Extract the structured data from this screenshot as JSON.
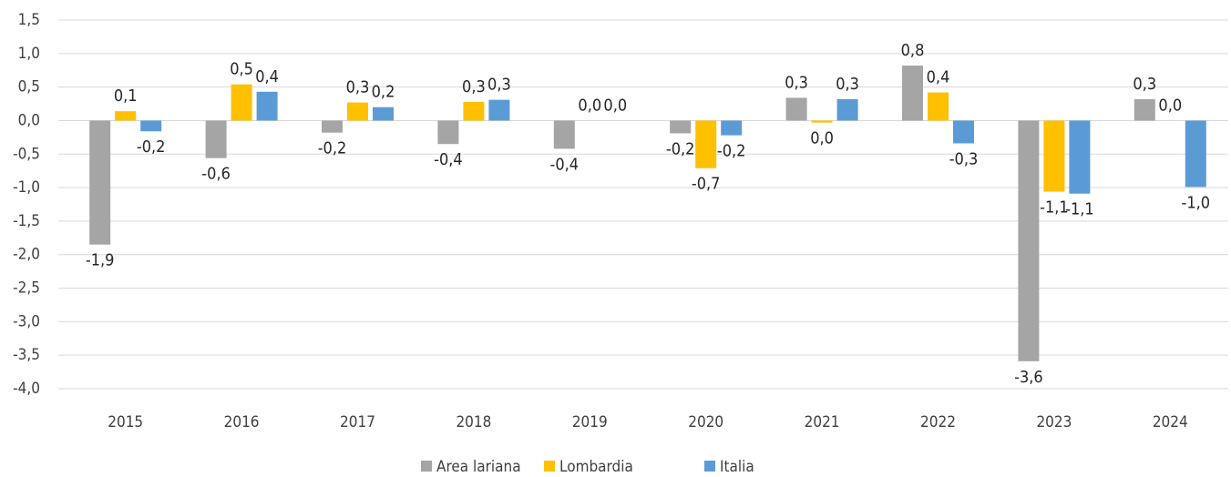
{
  "chart_data": {
    "type": "bar",
    "categories": [
      "2015",
      "2016",
      "2017",
      "2018",
      "2019",
      "2020",
      "2021",
      "2022",
      "2023",
      "2024"
    ],
    "series": [
      {
        "name": "Area lariana",
        "color": "#a5a5a5",
        "values": [
          -1.85,
          -0.56,
          -0.18,
          -0.35,
          -0.42,
          -0.19,
          0.34,
          0.82,
          -3.59,
          0.32
        ],
        "value_labels": [
          "-1,9",
          "-0,6",
          "-0,2",
          "-0,4",
          "-0,4",
          "-0,2",
          "0,3",
          "0,8",
          "-3,6",
          "0,3"
        ]
      },
      {
        "name": "Lombardia",
        "color": "#ffc000",
        "values": [
          0.14,
          0.54,
          0.27,
          0.28,
          0.0,
          -0.71,
          -0.03,
          0.42,
          -1.06,
          0.0
        ],
        "value_labels": [
          "0,1",
          "0,5",
          "0,3",
          "0,3",
          "0,0",
          "-0,7",
          "0,0",
          "0,4",
          "-1,1",
          "0,0"
        ]
      },
      {
        "name": "Italia",
        "color": "#5b9bd5",
        "values": [
          -0.16,
          0.43,
          0.2,
          0.31,
          0.0,
          -0.22,
          0.32,
          -0.34,
          -1.09,
          -0.99
        ],
        "value_labels": [
          "-0,2",
          "0,4",
          "0,2",
          "0,3",
          "0,0",
          "-0,2",
          "0,3",
          "-0,3",
          "-1,1",
          "-1,0"
        ]
      }
    ],
    "ylim": [
      -4.0,
      1.5
    ],
    "yticks": [
      {
        "value": 1.5,
        "label": "1,5"
      },
      {
        "value": 1.0,
        "label": "1,0"
      },
      {
        "value": 0.5,
        "label": "0,5"
      },
      {
        "value": 0.0,
        "label": "0,0"
      },
      {
        "value": -0.5,
        "label": "-0,5"
      },
      {
        "value": -1.0,
        "label": "-1,0"
      },
      {
        "value": -1.5,
        "label": "-1,5"
      },
      {
        "value": -2.0,
        "label": "-2,0"
      },
      {
        "value": -2.5,
        "label": "-2,5"
      },
      {
        "value": -3.0,
        "label": "-3,0"
      },
      {
        "value": -3.5,
        "label": "-3,5"
      },
      {
        "value": -4.0,
        "label": "-4,0"
      }
    ],
    "grid": true,
    "legend": "bottom"
  }
}
